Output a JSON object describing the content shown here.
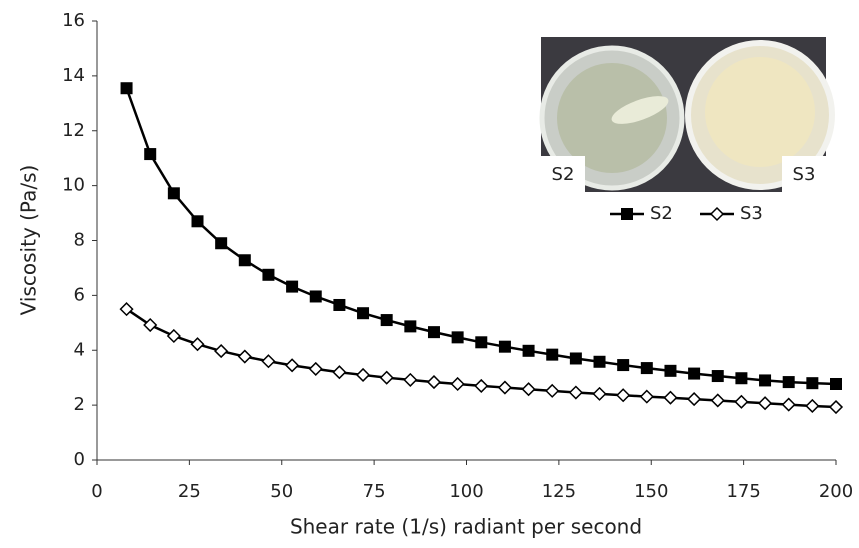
{
  "chart_data": {
    "type": "line",
    "x_label": "Shear rate (1/s) radiant per second",
    "y_label": "Viscosity (Pa/s)",
    "x": [
      8,
      14.4,
      20.8,
      27.2,
      33.6,
      40,
      46.4,
      52.8,
      59.2,
      65.6,
      72,
      78.4,
      84.8,
      91.2,
      97.6,
      104,
      110.4,
      116.8,
      123.2,
      129.6,
      136,
      142.4,
      148.8,
      155.2,
      161.6,
      168,
      174.4,
      180.8,
      187.2,
      193.6,
      200
    ],
    "series": [
      {
        "name": "S2",
        "color": "#000000",
        "marker": "square",
        "values": [
          13.55,
          11.15,
          9.72,
          8.7,
          7.9,
          7.28,
          6.75,
          6.32,
          5.96,
          5.65,
          5.35,
          5.1,
          4.87,
          4.66,
          4.47,
          4.29,
          4.13,
          3.98,
          3.84,
          3.7,
          3.58,
          3.46,
          3.35,
          3.25,
          3.15,
          3.06,
          2.98,
          2.9,
          2.84,
          2.8,
          2.77
        ]
      },
      {
        "name": "S3",
        "color": "#000000",
        "marker": "diamond",
        "values": [
          5.5,
          4.92,
          4.52,
          4.22,
          3.97,
          3.77,
          3.6,
          3.45,
          3.32,
          3.2,
          3.1,
          3.0,
          2.92,
          2.84,
          2.77,
          2.7,
          2.64,
          2.58,
          2.52,
          2.46,
          2.41,
          2.36,
          2.31,
          2.27,
          2.22,
          2.17,
          2.12,
          2.07,
          2.02,
          1.97,
          1.93
        ]
      }
    ],
    "xlim": [
      0,
      200
    ],
    "xticks": [
      0,
      25,
      50,
      75,
      100,
      125,
      150,
      175,
      200
    ],
    "ylim": [
      0,
      16
    ],
    "yticks": [
      0,
      2,
      4,
      6,
      8,
      10,
      12,
      14,
      16
    ],
    "grid": false,
    "inset_labels": [
      "S2",
      "S3"
    ]
  }
}
